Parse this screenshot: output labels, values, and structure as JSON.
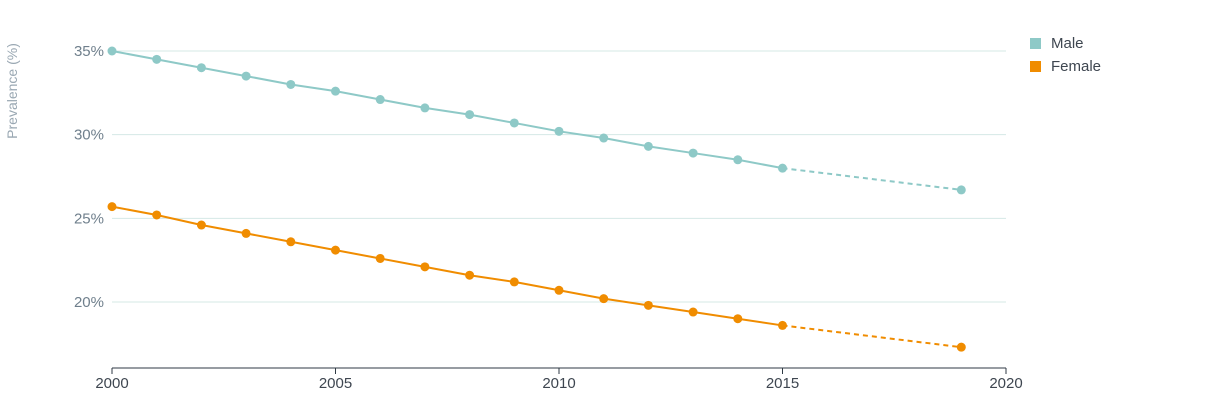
{
  "chart_data": {
    "type": "line",
    "ylabel": "Prevalence (%)",
    "xlim": [
      2000,
      2020
    ],
    "ylim": [
      16,
      36
    ],
    "x_ticks": [
      "2000",
      "2005",
      "2010",
      "2015",
      "2020"
    ],
    "y_ticks": [
      "35%",
      "30%",
      "25%",
      "20%"
    ],
    "y_tick_values": [
      35,
      30,
      25,
      20
    ],
    "x_tick_values": [
      2000,
      2005,
      2010,
      2015,
      2020
    ],
    "grid": true,
    "legend_position": "top-right",
    "series": [
      {
        "name": "Male",
        "color": "#8ec9c7",
        "solid": {
          "x": [
            2000,
            2001,
            2002,
            2003,
            2004,
            2005,
            2006,
            2007,
            2008,
            2009,
            2010,
            2011,
            2012,
            2013,
            2014,
            2015
          ],
          "y": [
            35.0,
            34.5,
            34.0,
            33.5,
            33.0,
            32.6,
            32.1,
            31.6,
            31.2,
            30.7,
            30.2,
            29.8,
            29.3,
            28.9,
            28.5,
            28.0
          ]
        },
        "projected": {
          "x": [
            2015,
            2019
          ],
          "y": [
            28.0,
            26.7
          ]
        }
      },
      {
        "name": "Female",
        "color": "#f08c00",
        "solid": {
          "x": [
            2000,
            2001,
            2002,
            2003,
            2004,
            2005,
            2006,
            2007,
            2008,
            2009,
            2010,
            2011,
            2012,
            2013,
            2014,
            2015
          ],
          "y": [
            25.7,
            25.2,
            24.6,
            24.1,
            23.6,
            23.1,
            22.6,
            22.1,
            21.6,
            21.2,
            20.7,
            20.2,
            19.8,
            19.4,
            19.0,
            18.6
          ]
        },
        "projected": {
          "x": [
            2015,
            2019
          ],
          "y": [
            18.6,
            17.3
          ]
        }
      }
    ]
  }
}
